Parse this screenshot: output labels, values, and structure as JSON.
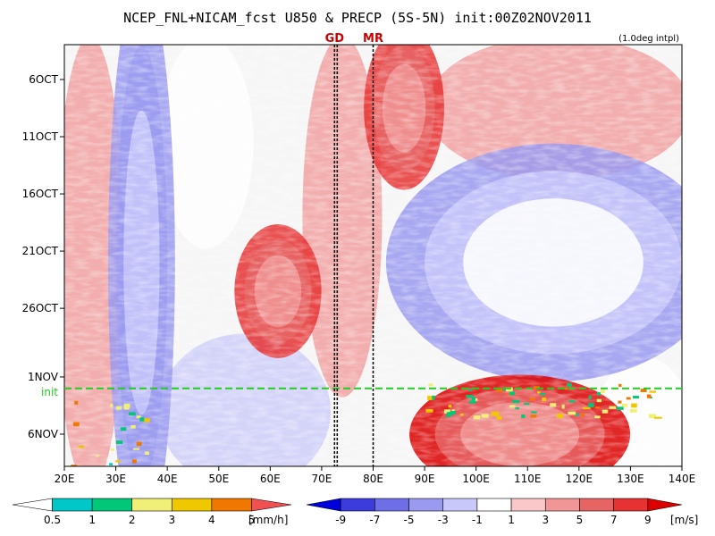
{
  "chart_data": {
    "type": "heatmap",
    "title": "NCEP_FNL+NICAM_fcst U850 & PRECP (5S-5N) init:00Z02NOV2011",
    "note": "(1.0deg intpl)",
    "x_ticks": [
      "20E",
      "30E",
      "40E",
      "50E",
      "60E",
      "70E",
      "80E",
      "90E",
      "100E",
      "110E",
      "120E",
      "130E",
      "140E"
    ],
    "x_range": [
      20,
      140
    ],
    "y_ticks": [
      "6OCT",
      "11OCT",
      "16OCT",
      "21OCT",
      "26OCT",
      "1NOV",
      "6NOV"
    ],
    "y_range_days_from_3oct": [
      0,
      38
    ],
    "init_label": "init",
    "init_date": "02NOV2011",
    "markers": [
      {
        "label": "GD",
        "lon": 72.5
      },
      {
        "label": "MR",
        "lon": 80
      }
    ],
    "precip_colorbar": {
      "unit": "[mm/h]",
      "labels": [
        "0.5",
        "1",
        "2",
        "3",
        "4",
        "5"
      ],
      "colors": [
        "#ffffff",
        "#00c8c8",
        "#00c878",
        "#f0f078",
        "#f0c800",
        "#f07800",
        "#f05050"
      ]
    },
    "wind_colorbar": {
      "unit": "[m/s]",
      "labels": [
        "-9",
        "-7",
        "-5",
        "-3",
        "-1",
        "1",
        "3",
        "5",
        "7",
        "9"
      ],
      "colors": [
        "#0000dc",
        "#3c3cdc",
        "#6e6ee6",
        "#9a9af0",
        "#c8c8fa",
        "#ffffff",
        "#fac8c8",
        "#f09696",
        "#e66464",
        "#e63232",
        "#dc0000"
      ]
    },
    "u850_field": {
      "description_values": "zonal wind m/s per (lon, day) region",
      "features": [
        {
          "lon_range": [
            30,
            40
          ],
          "days": [
            0,
            38
          ],
          "u": -6
        },
        {
          "lon_range": [
            55,
            68
          ],
          "days": [
            17,
            26
          ],
          "u": 6
        },
        {
          "lon_range": [
            80,
            92
          ],
          "days": [
            0,
            11
          ],
          "u": 6
        },
        {
          "lon_range": [
            90,
            140
          ],
          "days": [
            11,
            27
          ],
          "u": -5
        },
        {
          "lon_range": [
            92,
            125
          ],
          "days": [
            30,
            38
          ],
          "u": 8
        }
      ]
    }
  }
}
